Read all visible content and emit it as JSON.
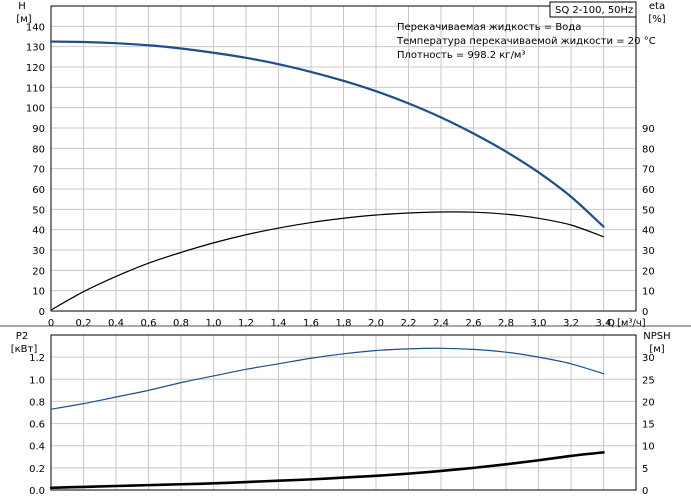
{
  "chart_data": [
    {
      "type": "line",
      "title": "",
      "badge": "SQ 2-100, 50Hz",
      "legend_lines": [
        "Перекачиваемая жидкость = Вода",
        "Температура перекачиваемой жидкости = 20 °C",
        "Плотность = 998.2 кг/м³"
      ],
      "xlabel": "Q [м³/ч]",
      "x_axis_name": "Q",
      "x_axis_unit": "[м³/ч]",
      "x_ticks": [
        "0",
        "0,2",
        "0,4",
        "0,6",
        "0,8",
        "1,0",
        "1,2",
        "1,4",
        "1,6",
        "1,8",
        "2,0",
        "2,2",
        "2,4",
        "2,6",
        "2,8",
        "3,0",
        "3,2",
        "3,4"
      ],
      "xlim": [
        0,
        3.6
      ],
      "left_axis_name": "H",
      "left_axis_unit": "[м]",
      "left_ticks": [
        "0",
        "10",
        "20",
        "30",
        "40",
        "50",
        "60",
        "70",
        "80",
        "90",
        "100",
        "110",
        "120",
        "130",
        "140"
      ],
      "ylim_left": [
        0,
        150
      ],
      "right_axis_name": "eta",
      "right_axis_unit": "[%]",
      "right_ticks": [
        "0",
        "10",
        "20",
        "30",
        "40",
        "50",
        "60",
        "70",
        "80",
        "90"
      ],
      "ylim_right": [
        0,
        150
      ],
      "grid": true,
      "series": [
        {
          "axis": "left",
          "color": "#1f4e8c",
          "x": [
            0,
            0.2,
            0.4,
            0.6,
            0.8,
            1.0,
            1.2,
            1.4,
            1.6,
            1.8,
            2.0,
            2.2,
            2.4,
            2.6,
            2.8,
            3.0,
            3.2,
            3.4
          ],
          "values": [
            132.5,
            132.3,
            131.7,
            130.7,
            129.1,
            127.0,
            124.5,
            121.4,
            117.6,
            113.2,
            108.1,
            102.1,
            95.2,
            87.3,
            78.4,
            68.2,
            56.2,
            41.5
          ]
        },
        {
          "axis": "right",
          "color": "#000000",
          "x": [
            0,
            0.2,
            0.4,
            0.6,
            0.8,
            1.0,
            1.2,
            1.4,
            1.6,
            1.8,
            2.0,
            2.2,
            2.4,
            2.6,
            2.8,
            3.0,
            3.2,
            3.4
          ],
          "values": [
            0.5,
            9.5,
            17.0,
            23.5,
            28.8,
            33.5,
            37.5,
            40.8,
            43.5,
            45.6,
            47.2,
            48.2,
            48.7,
            48.6,
            47.6,
            45.6,
            42.3,
            36.5
          ]
        }
      ]
    },
    {
      "type": "line",
      "title": "",
      "x_ticks": [
        "0",
        "0,2",
        "0,4",
        "0,6",
        "0,8",
        "1,0",
        "1,2",
        "1,4",
        "1,6",
        "1,8",
        "2,0",
        "2,2",
        "2,4",
        "2,6",
        "2,8",
        "3,0",
        "3,2",
        "3,4"
      ],
      "xlim": [
        0,
        3.6
      ],
      "left_axis_name": "P2",
      "left_axis_unit": "[кВт]",
      "left_ticks": [
        "0.0",
        "0.2",
        "0.4",
        "0.6",
        "0.8",
        "1.0",
        "1.2"
      ],
      "ylim_left": [
        0,
        1.4
      ],
      "right_axis_name": "NPSH",
      "right_axis_unit": "[м]",
      "right_ticks": [
        "0",
        "5",
        "10",
        "15",
        "20",
        "25",
        "30"
      ],
      "ylim_right": [
        0,
        35
      ],
      "grid": true,
      "series": [
        {
          "axis": "left",
          "color": "#1f4e8c",
          "x": [
            0,
            0.2,
            0.4,
            0.6,
            0.8,
            1.0,
            1.2,
            1.4,
            1.6,
            1.8,
            2.0,
            2.2,
            2.4,
            2.6,
            2.8,
            3.0,
            3.2,
            3.4
          ],
          "values": [
            0.73,
            0.78,
            0.84,
            0.9,
            0.97,
            1.03,
            1.09,
            1.14,
            1.19,
            1.23,
            1.26,
            1.275,
            1.28,
            1.27,
            1.245,
            1.2,
            1.14,
            1.05
          ]
        },
        {
          "axis": "right",
          "color": "#000000",
          "x": [
            0,
            0.2,
            0.4,
            0.6,
            0.8,
            1.0,
            1.2,
            1.4,
            1.6,
            1.8,
            2.0,
            2.2,
            2.4,
            2.6,
            2.8,
            3.0,
            3.2,
            3.4
          ],
          "values": [
            0.5,
            0.7,
            0.9,
            1.1,
            1.3,
            1.5,
            1.8,
            2.1,
            2.4,
            2.8,
            3.2,
            3.7,
            4.3,
            5.0,
            5.8,
            6.7,
            7.7,
            8.5
          ]
        }
      ]
    }
  ]
}
